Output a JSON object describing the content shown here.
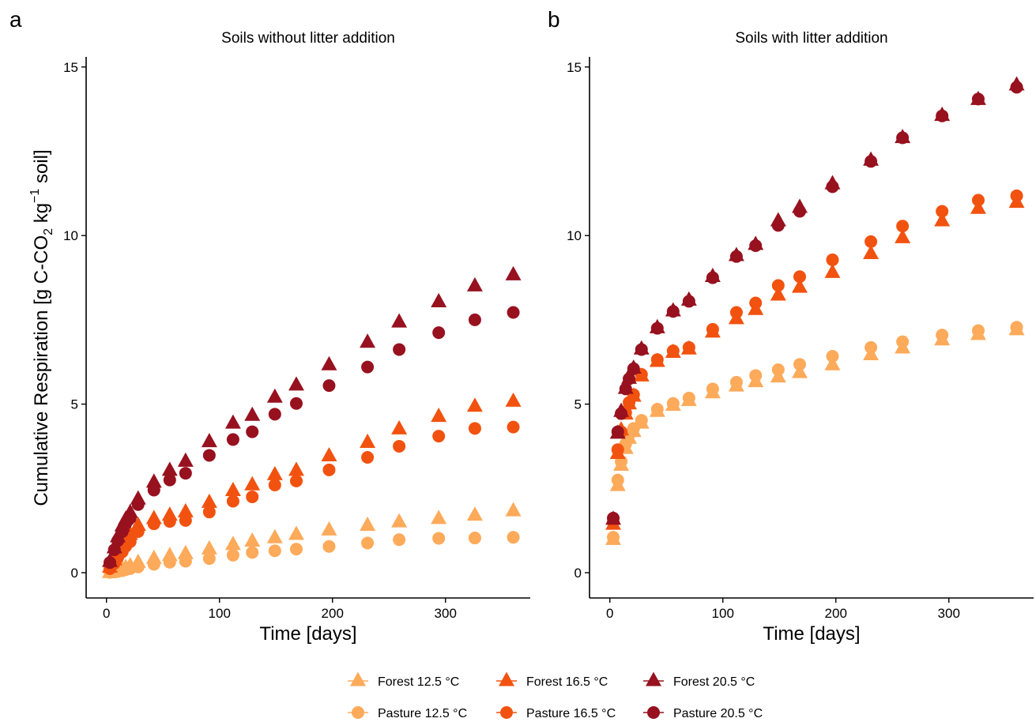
{
  "figure": {
    "ylabel_prefix": "Cumulative Respiration [g C-CO",
    "ylabel_sub": "2",
    "ylabel_mid": " kg",
    "ylabel_sup": "−1",
    "ylabel_suffix": " soil]"
  },
  "colors": {
    "12.5": "#fdaa5a",
    "16.5": "#f2520f",
    "20.5": "#97111f"
  },
  "legend": {
    "items": [
      {
        "label": "Forest 12.5 °C",
        "shape": "triangle",
        "color": "#fdaa5a"
      },
      {
        "label": "Forest 16.5 °C",
        "shape": "triangle",
        "color": "#f2520f"
      },
      {
        "label": "Forest 20.5 °C",
        "shape": "triangle",
        "color": "#97111f"
      },
      {
        "label": "Pasture 12.5 °C",
        "shape": "circle",
        "color": "#fdaa5a"
      },
      {
        "label": "Pasture 16.5 °C",
        "shape": "circle",
        "color": "#f2520f"
      },
      {
        "label": "Pasture 20.5 °C",
        "shape": "circle",
        "color": "#97111f"
      }
    ]
  },
  "chart_data": [
    {
      "type": "scatter",
      "panel_letter": "a",
      "title": "Soils without litter addition",
      "xlabel": "Time [days]",
      "ylabel": "Cumulative Respiration [g C-CO2 kg-1 soil]",
      "xlim": [
        -18,
        375
      ],
      "ylim": [
        -0.75,
        15.3
      ],
      "xticks": [
        0,
        100,
        200,
        300
      ],
      "yticks": [
        0,
        5,
        10,
        15
      ],
      "grid": false,
      "legend_position": "bottom",
      "x": [
        3,
        7,
        10,
        14,
        17,
        21,
        28,
        42,
        56,
        70,
        91,
        112,
        129,
        149,
        168,
        197,
        231,
        259,
        294,
        326,
        360
      ],
      "series": [
        {
          "name": "Forest 12.5 °C",
          "shape": "triangle",
          "color": "#fdaa5a",
          "values": [
            0.02,
            0.05,
            0.08,
            0.12,
            0.17,
            0.22,
            0.32,
            0.44,
            0.52,
            0.58,
            0.72,
            0.85,
            0.95,
            1.05,
            1.15,
            1.28,
            1.42,
            1.52,
            1.62,
            1.72,
            1.85
          ]
        },
        {
          "name": "Pasture 12.5 °C",
          "shape": "circle",
          "color": "#fdaa5a",
          "values": [
            0.01,
            0.02,
            0.04,
            0.06,
            0.09,
            0.12,
            0.17,
            0.25,
            0.31,
            0.34,
            0.42,
            0.52,
            0.6,
            0.65,
            0.7,
            0.78,
            0.88,
            0.98,
            1.02,
            1.03,
            1.05
          ]
        },
        {
          "name": "Forest 16.5 °C",
          "shape": "triangle",
          "color": "#f2520f",
          "values": [
            0.18,
            0.4,
            0.62,
            0.82,
            1.0,
            1.15,
            1.42,
            1.62,
            1.72,
            1.82,
            2.1,
            2.45,
            2.62,
            2.92,
            3.05,
            3.48,
            3.88,
            4.28,
            4.65,
            4.95,
            5.1
          ]
        },
        {
          "name": "Pasture 16.5 °C",
          "shape": "circle",
          "color": "#f2520f",
          "values": [
            0.12,
            0.28,
            0.45,
            0.62,
            0.78,
            0.92,
            1.22,
            1.45,
            1.52,
            1.55,
            1.8,
            2.12,
            2.25,
            2.6,
            2.72,
            3.05,
            3.42,
            3.75,
            4.05,
            4.28,
            4.32
          ]
        },
        {
          "name": "Forest 20.5 °C",
          "shape": "triangle",
          "color": "#97111f",
          "values": [
            0.35,
            0.75,
            1.08,
            1.4,
            1.6,
            1.8,
            2.2,
            2.7,
            3.05,
            3.32,
            3.9,
            4.45,
            4.68,
            5.22,
            5.58,
            6.18,
            6.85,
            7.45,
            8.05,
            8.52,
            8.85
          ]
        },
        {
          "name": "Pasture 20.5 °C",
          "shape": "circle",
          "color": "#97111f",
          "values": [
            0.3,
            0.68,
            0.95,
            1.22,
            1.45,
            1.62,
            2.02,
            2.45,
            2.75,
            2.95,
            3.48,
            3.95,
            4.18,
            4.7,
            5.02,
            5.55,
            6.1,
            6.62,
            7.12,
            7.5,
            7.72
          ]
        }
      ]
    },
    {
      "type": "scatter",
      "panel_letter": "b",
      "title": "Soils with litter addition",
      "xlabel": "Time [days]",
      "ylabel": "",
      "xlim": [
        -18,
        375
      ],
      "ylim": [
        -0.75,
        15.3
      ],
      "xticks": [
        0,
        100,
        200,
        300
      ],
      "yticks": [
        0,
        5,
        10,
        15
      ],
      "grid": false,
      "legend_position": "bottom",
      "x": [
        3,
        7,
        10,
        14,
        17,
        21,
        28,
        42,
        56,
        70,
        91,
        112,
        129,
        149,
        168,
        197,
        231,
        259,
        294,
        326,
        360
      ],
      "series": [
        {
          "name": "Forest 12.5 °C",
          "shape": "triangle",
          "color": "#fdaa5a",
          "values": [
            1.0,
            2.6,
            3.2,
            3.7,
            4.0,
            4.2,
            4.45,
            4.8,
            4.98,
            5.12,
            5.35,
            5.55,
            5.68,
            5.82,
            5.95,
            6.18,
            6.48,
            6.68,
            6.92,
            7.08,
            7.22
          ]
        },
        {
          "name": "Pasture 12.5 °C",
          "shape": "circle",
          "color": "#fdaa5a",
          "values": [
            1.05,
            2.75,
            3.3,
            3.82,
            4.1,
            4.28,
            4.52,
            4.85,
            5.02,
            5.18,
            5.45,
            5.65,
            5.85,
            6.02,
            6.18,
            6.42,
            6.68,
            6.85,
            7.05,
            7.18,
            7.28
          ]
        },
        {
          "name": "Forest 16.5 °C",
          "shape": "triangle",
          "color": "#f2520f",
          "values": [
            1.45,
            3.55,
            4.25,
            4.72,
            5.02,
            5.25,
            5.85,
            6.28,
            6.55,
            6.65,
            7.15,
            7.55,
            7.82,
            8.25,
            8.48,
            8.92,
            9.48,
            9.95,
            10.45,
            10.82,
            11.0
          ]
        },
        {
          "name": "Pasture 16.5 °C",
          "shape": "circle",
          "color": "#f2520f",
          "values": [
            1.5,
            3.65,
            4.18,
            4.75,
            5.05,
            5.28,
            5.88,
            6.32,
            6.58,
            6.68,
            7.22,
            7.72,
            8.0,
            8.52,
            8.78,
            9.28,
            9.82,
            10.28,
            10.72,
            11.05,
            11.18
          ]
        },
        {
          "name": "Forest 20.5 °C",
          "shape": "triangle",
          "color": "#97111f",
          "values": [
            1.6,
            4.15,
            4.8,
            5.48,
            5.78,
            6.08,
            6.65,
            7.28,
            7.78,
            8.1,
            8.8,
            9.42,
            9.75,
            10.45,
            10.85,
            11.55,
            12.25,
            12.92,
            13.58,
            14.05,
            14.48
          ]
        },
        {
          "name": "Pasture 20.5 °C",
          "shape": "circle",
          "color": "#97111f",
          "values": [
            1.62,
            4.18,
            4.72,
            5.45,
            5.75,
            6.05,
            6.62,
            7.25,
            7.75,
            8.05,
            8.75,
            9.38,
            9.7,
            10.3,
            10.72,
            11.45,
            12.2,
            12.9,
            13.55,
            14.05,
            14.4
          ]
        }
      ]
    }
  ]
}
